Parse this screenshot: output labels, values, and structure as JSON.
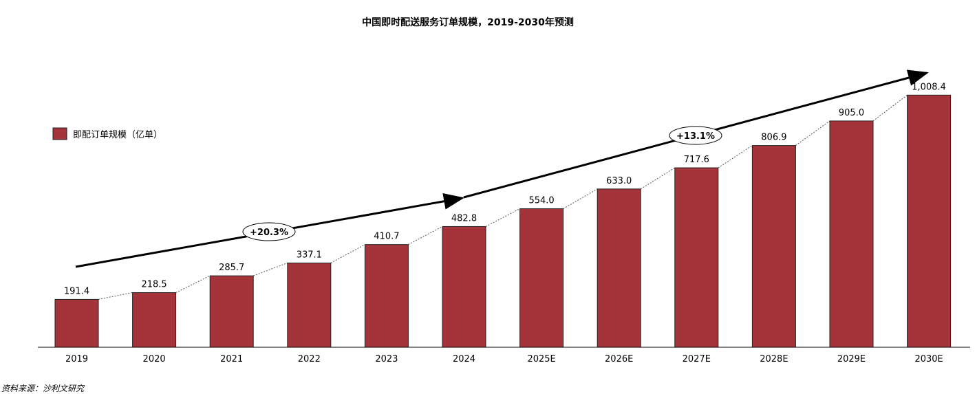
{
  "chart_data": {
    "type": "bar",
    "title": "中国即时配送服务订单规模，2019-2030年预测",
    "categories": [
      "2019",
      "2020",
      "2021",
      "2022",
      "2023",
      "2024",
      "2025E",
      "2026E",
      "2027E",
      "2028E",
      "2029E",
      "2030E"
    ],
    "series": [
      {
        "name": "即配订单规模（亿单）",
        "values": [
          191.4,
          218.5,
          285.7,
          337.1,
          410.7,
          482.8,
          554.0,
          633.0,
          717.6,
          806.9,
          905.0,
          1008.4
        ],
        "labels": [
          "191.4",
          "218.5",
          "285.7",
          "337.1",
          "410.7",
          "482.8",
          "554.0",
          "633.0",
          "717.6",
          "806.9",
          "905.0",
          "1,008.4"
        ]
      }
    ],
    "ylim": [
      0,
      1100
    ],
    "grid": false,
    "legend_position": "left",
    "bar_color": "#A5343A",
    "annotations": [
      {
        "text": "+20.3%",
        "from": "2019",
        "to": "2024"
      },
      {
        "text": "+13.1%",
        "from": "2024",
        "to": "2030E"
      }
    ],
    "source": "资料来源：沙利文研究"
  }
}
